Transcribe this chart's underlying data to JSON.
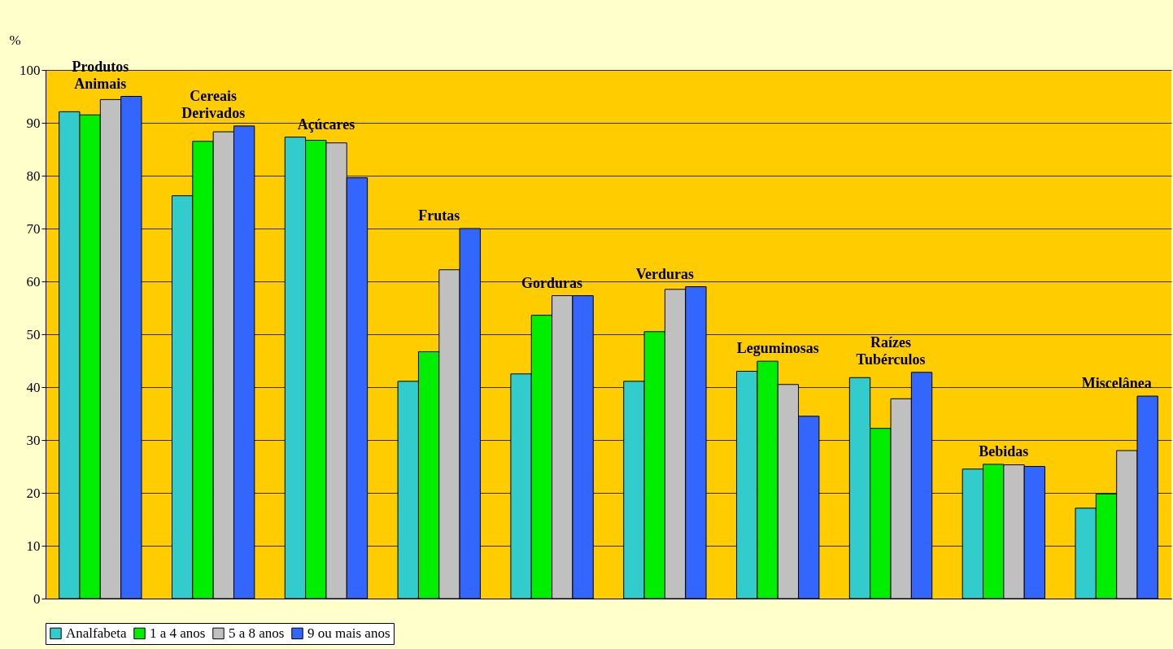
{
  "chart_data": {
    "type": "bar",
    "categories": [
      "Produtos\nAnimais",
      "Cereais\nDerivados",
      "Açúcares",
      "Frutas",
      "Gorduras",
      "Verduras",
      "Leguminosas",
      "Raízes\nTubérculos",
      "Bebidas",
      "Miscelânea"
    ],
    "ylabel": "%",
    "series": [
      {
        "name": "Analfabeta",
        "color": "#33cccc",
        "values": [
          92.1,
          76.2,
          87.3,
          41.1,
          42.5,
          41.1,
          43.0,
          41.8,
          24.5,
          17.1
        ]
      },
      {
        "name": "1 a 4 anos",
        "color": "#00ee00",
        "values": [
          91.5,
          86.5,
          86.7,
          46.7,
          53.6,
          50.5,
          44.9,
          32.2,
          25.4,
          19.8
        ]
      },
      {
        "name": "5 a 8 anos",
        "color": "#c0c0c0",
        "values": [
          94.4,
          88.3,
          86.2,
          62.2,
          57.3,
          58.5,
          40.5,
          37.8,
          25.3,
          28.0
        ]
      },
      {
        "name": "9 ou mais anos",
        "color": "#3366ff",
        "values": [
          95.0,
          89.4,
          79.6,
          70.0,
          57.3,
          59.0,
          34.5,
          42.8,
          25.0,
          38.3
        ]
      }
    ],
    "ylim": [
      0,
      100
    ],
    "yticks": [
      0,
      10,
      20,
      30,
      40,
      50,
      60,
      70,
      80,
      90,
      100
    ],
    "grid": "y",
    "legend": "bottom",
    "tick_labels": "y"
  }
}
